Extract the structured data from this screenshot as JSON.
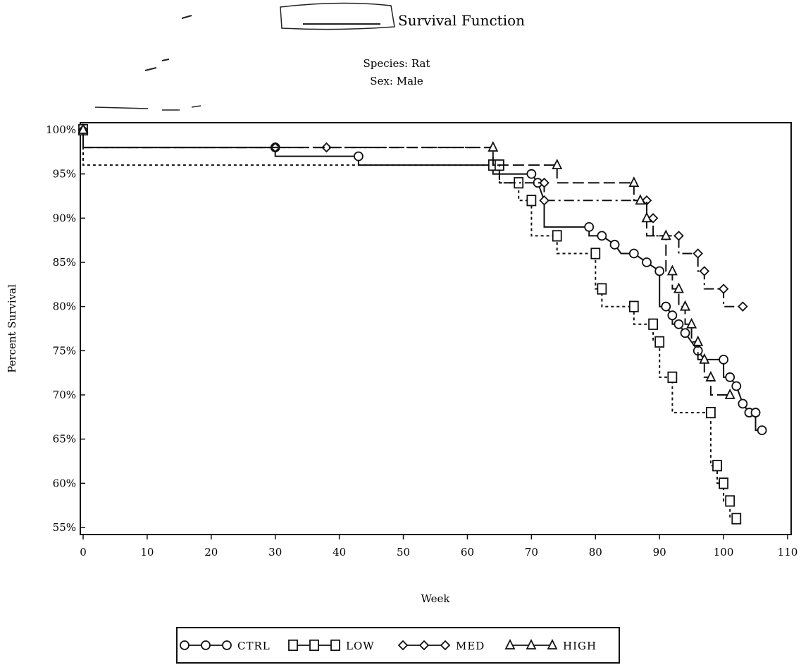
{
  "chart_data": {
    "type": "line",
    "title": "Survival Function",
    "subtitle_lines": [
      "Species: Rat",
      "Sex: Male"
    ],
    "xlabel": "Week",
    "ylabel": "Percent Survival",
    "xlim": [
      0,
      110
    ],
    "ylim": [
      55,
      100
    ],
    "x_ticks": [
      0,
      10,
      20,
      30,
      40,
      50,
      60,
      70,
      80,
      90,
      100,
      110
    ],
    "x_tick_labels": [
      "0",
      "10",
      "20",
      "30",
      "40",
      "50",
      "60",
      "70",
      "80",
      "90",
      "100",
      "110"
    ],
    "y_ticks": [
      100,
      95,
      90,
      85,
      80,
      75,
      70,
      65,
      60,
      55
    ],
    "y_tick_labels": [
      "100%",
      "95%",
      "90%",
      "85%",
      "80%",
      "75%",
      "70%",
      "65%",
      "60%",
      "55%"
    ],
    "grid": false,
    "legend_position": "bottom",
    "series": [
      {
        "name": "CTRL",
        "marker": "circle",
        "dash": "",
        "steps": [
          [
            0,
            100
          ],
          [
            0,
            98
          ],
          [
            30,
            98
          ],
          [
            30,
            97
          ],
          [
            43,
            97
          ],
          [
            43,
            96
          ],
          [
            64,
            96
          ],
          [
            64,
            95
          ],
          [
            70,
            95
          ],
          [
            71,
            94
          ],
          [
            72,
            92
          ],
          [
            72,
            89
          ],
          [
            79,
            89
          ],
          [
            79,
            88
          ],
          [
            81,
            88
          ],
          [
            83,
            87
          ],
          [
            84,
            86
          ],
          [
            86,
            86
          ],
          [
            88,
            85
          ],
          [
            90,
            84
          ],
          [
            90,
            80
          ],
          [
            91,
            80
          ],
          [
            92,
            79
          ],
          [
            92,
            78
          ],
          [
            93,
            78
          ],
          [
            94,
            77
          ],
          [
            95,
            76
          ],
          [
            96,
            75
          ],
          [
            97,
            74
          ],
          [
            100,
            74
          ],
          [
            100,
            72
          ],
          [
            101,
            72
          ],
          [
            102,
            71
          ],
          [
            103,
            69
          ],
          [
            104,
            68
          ],
          [
            105,
            68
          ],
          [
            105,
            66
          ],
          [
            106,
            66
          ]
        ],
        "markers": [
          [
            0,
            100
          ],
          [
            30,
            98
          ],
          [
            43,
            97
          ],
          [
            64,
            96
          ],
          [
            70,
            95
          ],
          [
            71,
            94
          ],
          [
            79,
            89
          ],
          [
            81,
            88
          ],
          [
            83,
            87
          ],
          [
            86,
            86
          ],
          [
            88,
            85
          ],
          [
            90,
            84
          ],
          [
            91,
            80
          ],
          [
            92,
            79
          ],
          [
            93,
            78
          ],
          [
            94,
            77
          ],
          [
            96,
            75
          ],
          [
            100,
            74
          ],
          [
            101,
            72
          ],
          [
            102,
            71
          ],
          [
            103,
            69
          ],
          [
            104,
            68
          ],
          [
            105,
            68
          ],
          [
            106,
            66
          ]
        ]
      },
      {
        "name": "LOW",
        "marker": "square",
        "dash": "4 4",
        "steps": [
          [
            0,
            100
          ],
          [
            0,
            96
          ],
          [
            64,
            96
          ],
          [
            65,
            96
          ],
          [
            65,
            94
          ],
          [
            68,
            94
          ],
          [
            68,
            92
          ],
          [
            70,
            92
          ],
          [
            70,
            88
          ],
          [
            74,
            88
          ],
          [
            74,
            86
          ],
          [
            80,
            86
          ],
          [
            80,
            82
          ],
          [
            81,
            82
          ],
          [
            81,
            80
          ],
          [
            86,
            80
          ],
          [
            86,
            78
          ],
          [
            89,
            78
          ],
          [
            89,
            76
          ],
          [
            90,
            76
          ],
          [
            90,
            72
          ],
          [
            92,
            72
          ],
          [
            92,
            68
          ],
          [
            98,
            68
          ],
          [
            98,
            62
          ],
          [
            99,
            62
          ],
          [
            99,
            60
          ],
          [
            100,
            60
          ],
          [
            100,
            58
          ],
          [
            101,
            58
          ],
          [
            101,
            56
          ],
          [
            102,
            56
          ]
        ],
        "markers": [
          [
            0,
            100
          ],
          [
            64,
            96
          ],
          [
            65,
            96
          ],
          [
            68,
            94
          ],
          [
            70,
            92
          ],
          [
            74,
            88
          ],
          [
            80,
            86
          ],
          [
            81,
            82
          ],
          [
            86,
            80
          ],
          [
            89,
            78
          ],
          [
            90,
            76
          ],
          [
            92,
            72
          ],
          [
            98,
            68
          ],
          [
            99,
            62
          ],
          [
            100,
            60
          ],
          [
            101,
            58
          ],
          [
            102,
            56
          ]
        ]
      },
      {
        "name": "MED",
        "marker": "diamond",
        "dash": "14 5 3 5",
        "steps": [
          [
            0,
            100
          ],
          [
            0,
            98
          ],
          [
            38,
            98
          ],
          [
            64,
            98
          ],
          [
            64,
            96
          ],
          [
            65,
            96
          ],
          [
            65,
            94
          ],
          [
            72,
            94
          ],
          [
            72,
            92
          ],
          [
            88,
            92
          ],
          [
            88,
            90
          ],
          [
            89,
            90
          ],
          [
            89,
            88
          ],
          [
            93,
            88
          ],
          [
            93,
            86
          ],
          [
            96,
            86
          ],
          [
            96,
            84
          ],
          [
            97,
            84
          ],
          [
            97,
            82
          ],
          [
            100,
            82
          ],
          [
            100,
            80
          ],
          [
            103,
            80
          ]
        ],
        "markers": [
          [
            0,
            100
          ],
          [
            30,
            98
          ],
          [
            38,
            98
          ],
          [
            72,
            94
          ],
          [
            72,
            92
          ],
          [
            88,
            92
          ],
          [
            89,
            90
          ],
          [
            93,
            88
          ],
          [
            96,
            86
          ],
          [
            97,
            84
          ],
          [
            100,
            82
          ],
          [
            103,
            80
          ]
        ]
      },
      {
        "name": "HIGH",
        "marker": "triangle",
        "dash": "16 6",
        "steps": [
          [
            0,
            100
          ],
          [
            0,
            98
          ],
          [
            64,
            98
          ],
          [
            64,
            96
          ],
          [
            74,
            96
          ],
          [
            74,
            94
          ],
          [
            86,
            94
          ],
          [
            86,
            92
          ],
          [
            88,
            92
          ],
          [
            88,
            88
          ],
          [
            91,
            88
          ],
          [
            91,
            84
          ],
          [
            92,
            84
          ],
          [
            92,
            82
          ],
          [
            93,
            82
          ],
          [
            93,
            80
          ],
          [
            94,
            80
          ],
          [
            94,
            78
          ],
          [
            95,
            78
          ],
          [
            95,
            76
          ],
          [
            96,
            76
          ],
          [
            96,
            74
          ],
          [
            97,
            74
          ],
          [
            97,
            72
          ],
          [
            98,
            72
          ],
          [
            98,
            70
          ],
          [
            101,
            70
          ]
        ],
        "markers": [
          [
            0,
            100
          ],
          [
            64,
            98
          ],
          [
            74,
            96
          ],
          [
            86,
            94
          ],
          [
            87,
            92
          ],
          [
            88,
            90
          ],
          [
            91,
            88
          ],
          [
            92,
            84
          ],
          [
            93,
            82
          ],
          [
            94,
            80
          ],
          [
            95,
            78
          ],
          [
            96,
            76
          ],
          [
            97,
            74
          ],
          [
            98,
            72
          ],
          [
            101,
            70
          ]
        ]
      }
    ]
  },
  "legend": {
    "items": [
      {
        "label": "CTRL",
        "marker": "circle"
      },
      {
        "label": "LOW",
        "marker": "square"
      },
      {
        "label": "MED",
        "marker": "diamond"
      },
      {
        "label": "HIGH",
        "marker": "triangle"
      }
    ]
  }
}
